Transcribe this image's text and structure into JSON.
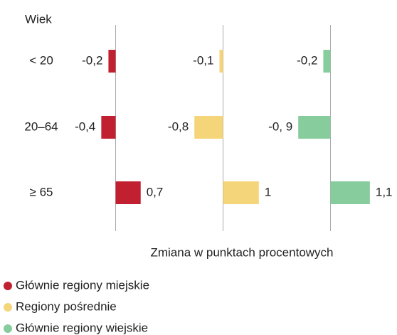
{
  "chart_data": {
    "type": "bar",
    "orientation": "horizontal",
    "category_header": "Wiek",
    "categories": [
      "< 20",
      "20–64",
      "≥ 65"
    ],
    "xlabel": "Zmiana w punktach procentowych",
    "xlim": [
      -1.5,
      1.5
    ],
    "series": [
      {
        "name": "Głównie regiony miejskie",
        "color": "#c0202f",
        "values": [
          -0.2,
          -0.4,
          0.7
        ],
        "value_labels": [
          "-0,2",
          "-0,4",
          "0,7"
        ]
      },
      {
        "name": "Regiony pośrednie",
        "color": "#f5d57a",
        "values": [
          -0.1,
          -0.8,
          1
        ],
        "value_labels": [
          "-0,1",
          "-0,8",
          "1"
        ]
      },
      {
        "name": "Głównie regiony wiejskie",
        "color": "#86cc9c",
        "values": [
          -0.2,
          -0.9,
          1.1
        ],
        "value_labels": [
          "-0,2",
          "-0, 9",
          "1,1"
        ]
      }
    ]
  }
}
